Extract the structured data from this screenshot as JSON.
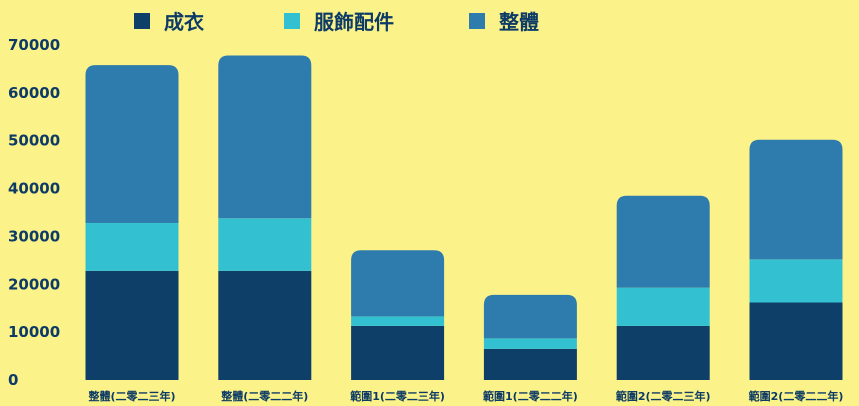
{
  "chart_data": {
    "type": "bar",
    "stacked": true,
    "categories": [
      "整體(二零二三年)",
      "整體(二零二二年)",
      "範圍1(二零二三年)",
      "範圍1(二零二二年)",
      "範圍2(二零二三年)",
      "範圍2(二零二二年)"
    ],
    "series": [
      {
        "name": "成衣",
        "color": "#0d3f68",
        "values": [
          22800,
          22800,
          11300,
          6500,
          11300,
          16200
        ]
      },
      {
        "name": "服飾配件",
        "color": "#33c0d1",
        "values": [
          10000,
          11000,
          2000,
          2200,
          8000,
          9000
        ]
      },
      {
        "name": "整體",
        "color": "#2e7bad",
        "values": [
          33000,
          34000,
          13800,
          9100,
          19200,
          25000
        ]
      }
    ],
    "ylim": [
      0,
      70000
    ],
    "yticks": [
      "0",
      "10000",
      "20000",
      "30000",
      "40000",
      "50000",
      "60000",
      "70000"
    ],
    "legend_position": "top-center",
    "grid": false,
    "title": "",
    "xlabel": "",
    "ylabel": ""
  }
}
